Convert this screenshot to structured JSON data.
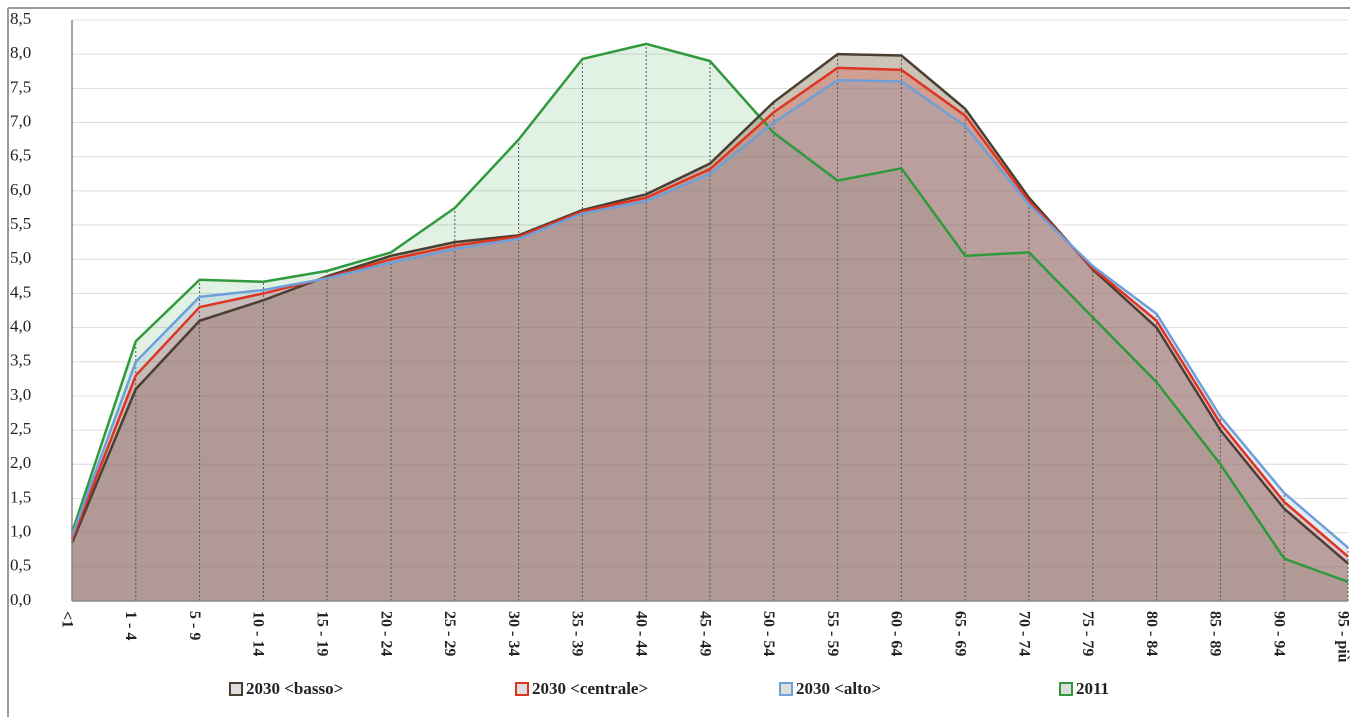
{
  "chart_data": {
    "type": "area",
    "categories": [
      "<1",
      "1 - 4",
      "5 - 9",
      "10 - 14",
      "15 - 19",
      "20 - 24",
      "25 - 29",
      "30 - 34",
      "35 - 39",
      "40 - 44",
      "45 - 49",
      "50 - 54",
      "55 - 59",
      "60 - 64",
      "65 - 69",
      "70 - 74",
      "75 - 79",
      "80 - 84",
      "85 - 89",
      "90 - 94",
      "95 - più"
    ],
    "series": [
      {
        "name": "2011",
        "color": "#2e9a3c",
        "values": [
          1.0,
          3.8,
          4.7,
          4.67,
          4.83,
          5.1,
          5.75,
          6.75,
          7.93,
          8.15,
          7.9,
          6.85,
          6.15,
          6.33,
          5.05,
          5.1,
          4.15,
          3.2,
          2.0,
          0.62,
          0.28
        ]
      },
      {
        "name": "2030 <basso>",
        "color": "#4a3f30",
        "values": [
          0.85,
          3.1,
          4.1,
          4.4,
          4.75,
          5.05,
          5.25,
          5.35,
          5.72,
          5.95,
          6.4,
          7.3,
          8.0,
          7.98,
          7.2,
          5.9,
          4.85,
          4.0,
          2.5,
          1.35,
          0.55
        ]
      },
      {
        "name": "2030 <centrale>",
        "color": "#e03422",
        "values": [
          0.9,
          3.3,
          4.3,
          4.5,
          4.73,
          5.0,
          5.2,
          5.33,
          5.7,
          5.9,
          6.32,
          7.15,
          7.8,
          7.77,
          7.1,
          5.85,
          4.87,
          4.1,
          2.6,
          1.45,
          0.65
        ]
      },
      {
        "name": "2030 <alto>",
        "color": "#6f9fd8",
        "values": [
          0.95,
          3.5,
          4.45,
          4.55,
          4.72,
          4.95,
          5.15,
          5.3,
          5.67,
          5.85,
          6.25,
          7.0,
          7.62,
          7.6,
          6.95,
          5.8,
          4.9,
          4.2,
          2.7,
          1.58,
          0.78
        ]
      }
    ],
    "ylim": [
      0,
      8.5
    ],
    "yticks": [
      {
        "value": 0,
        "label": "0,0"
      },
      {
        "value": 0.5,
        "label": "0,5"
      },
      {
        "value": 1,
        "label": "1,0"
      },
      {
        "value": 1.5,
        "label": "1,5"
      },
      {
        "value": 2,
        "label": "2,0"
      },
      {
        "value": 2.5,
        "label": "2,5"
      },
      {
        "value": 3,
        "label": "3,0"
      },
      {
        "value": 3.5,
        "label": "3,5"
      },
      {
        "value": 4,
        "label": "4,0"
      },
      {
        "value": 4.5,
        "label": "4,5"
      },
      {
        "value": 5,
        "label": "5,0"
      },
      {
        "value": 5.5,
        "label": "5,5"
      },
      {
        "value": 6,
        "label": "6,0"
      },
      {
        "value": 6.5,
        "label": "6,5"
      },
      {
        "value": 7,
        "label": "7,0"
      },
      {
        "value": 7.5,
        "label": "7,5"
      },
      {
        "value": 8,
        "label": "8,0"
      },
      {
        "value": 8.5,
        "label": "8,5"
      }
    ],
    "grid": true
  }
}
